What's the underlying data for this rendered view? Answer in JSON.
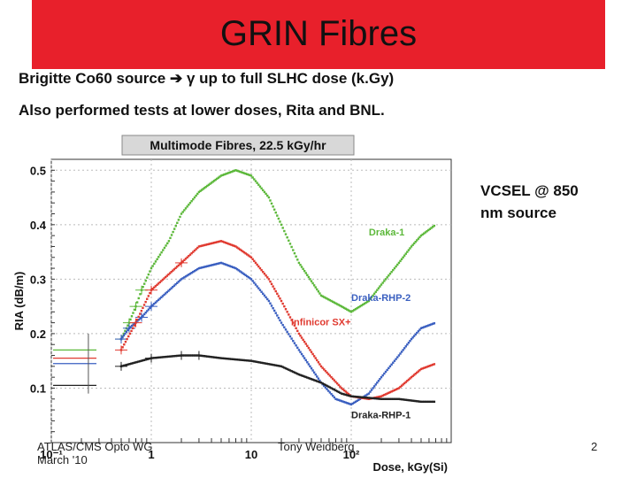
{
  "slide": {
    "title": "GRIN Fibres",
    "bullet1": "Brigitte Co60 source ➔ γ up to full SLHC dose (k.Gy)",
    "bullet2": "Also performed tests at lower doses, Rita and BNL.",
    "vcsel_note": "VCSEL @ 850 nm source",
    "footer_left_line1": "ATLAS/CMS Opto WG",
    "footer_left_line2": "March '10",
    "footer_center": "Tony Weidberg",
    "page_number": "2"
  },
  "chart_data": {
    "type": "scatter",
    "title": "Multimode Fibres, 22.5 kGy/hr",
    "xlabel": "Dose, kGy(Si)",
    "ylabel": "RIA (dB/m)",
    "xscale": "log",
    "xlim": [
      0.1,
      1000
    ],
    "ylim": [
      0.0,
      0.52
    ],
    "x_ticks": [
      "10⁻¹",
      "1",
      "10",
      "10²"
    ],
    "y_ticks": [
      "0.1",
      "0.2",
      "0.3",
      "0.4",
      "0.5"
    ],
    "grid": true,
    "series": [
      {
        "name": "Draka-1",
        "color": "#5cb83a",
        "points": [
          [
            0.5,
            0.19
          ],
          [
            0.6,
            0.22
          ],
          [
            0.7,
            0.25
          ],
          [
            0.8,
            0.28
          ],
          [
            1.0,
            0.32
          ],
          [
            1.5,
            0.37
          ],
          [
            2,
            0.42
          ],
          [
            3,
            0.46
          ],
          [
            5,
            0.49
          ],
          [
            7,
            0.5
          ],
          [
            10,
            0.49
          ],
          [
            15,
            0.45
          ],
          [
            20,
            0.4
          ],
          [
            30,
            0.33
          ],
          [
            50,
            0.27
          ],
          [
            80,
            0.25
          ],
          [
            100,
            0.24
          ],
          [
            150,
            0.26
          ],
          [
            200,
            0.29
          ],
          [
            300,
            0.33
          ],
          [
            400,
            0.36
          ],
          [
            500,
            0.38
          ],
          [
            700,
            0.4
          ]
        ]
      },
      {
        "name": "Draka-RHP-2",
        "color": "#3a5fc0",
        "points": [
          [
            0.5,
            0.19
          ],
          [
            0.6,
            0.21
          ],
          [
            0.8,
            0.23
          ],
          [
            1.0,
            0.25
          ],
          [
            2,
            0.3
          ],
          [
            3,
            0.32
          ],
          [
            5,
            0.33
          ],
          [
            7,
            0.32
          ],
          [
            10,
            0.3
          ],
          [
            15,
            0.26
          ],
          [
            20,
            0.22
          ],
          [
            30,
            0.17
          ],
          [
            50,
            0.11
          ],
          [
            70,
            0.08
          ],
          [
            100,
            0.07
          ],
          [
            150,
            0.09
          ],
          [
            200,
            0.12
          ],
          [
            300,
            0.16
          ],
          [
            400,
            0.19
          ],
          [
            500,
            0.21
          ],
          [
            700,
            0.22
          ]
        ]
      },
      {
        "name": "Infinicor SX+",
        "color": "#e03a30",
        "points": [
          [
            0.5,
            0.17
          ],
          [
            0.7,
            0.22
          ],
          [
            1.0,
            0.28
          ],
          [
            2,
            0.33
          ],
          [
            3,
            0.36
          ],
          [
            5,
            0.37
          ],
          [
            7,
            0.36
          ],
          [
            10,
            0.34
          ],
          [
            15,
            0.3
          ],
          [
            20,
            0.26
          ],
          [
            30,
            0.2
          ],
          [
            50,
            0.14
          ],
          [
            80,
            0.1
          ],
          [
            100,
            0.085
          ],
          [
            150,
            0.08
          ],
          [
            200,
            0.085
          ],
          [
            300,
            0.1
          ],
          [
            400,
            0.12
          ],
          [
            500,
            0.135
          ],
          [
            700,
            0.145
          ]
        ]
      },
      {
        "name": "Draka-RHP-1",
        "color": "#222222",
        "points": [
          [
            0.5,
            0.14
          ],
          [
            1.0,
            0.155
          ],
          [
            2,
            0.16
          ],
          [
            3,
            0.16
          ],
          [
            5,
            0.155
          ],
          [
            10,
            0.15
          ],
          [
            20,
            0.14
          ],
          [
            30,
            0.125
          ],
          [
            50,
            0.11
          ],
          [
            80,
            0.09
          ],
          [
            100,
            0.085
          ],
          [
            200,
            0.08
          ],
          [
            300,
            0.08
          ],
          [
            500,
            0.075
          ],
          [
            700,
            0.075
          ]
        ]
      }
    ],
    "early_points": [
      {
        "x": 0.15,
        "y": 0.17,
        "color": "#5cb83a"
      },
      {
        "x": 0.15,
        "y": 0.155,
        "color": "#e03a30"
      },
      {
        "x": 0.15,
        "y": 0.145,
        "color": "#3a5fc0"
      },
      {
        "x": 0.15,
        "y": 0.105,
        "color": "#222222"
      }
    ]
  }
}
